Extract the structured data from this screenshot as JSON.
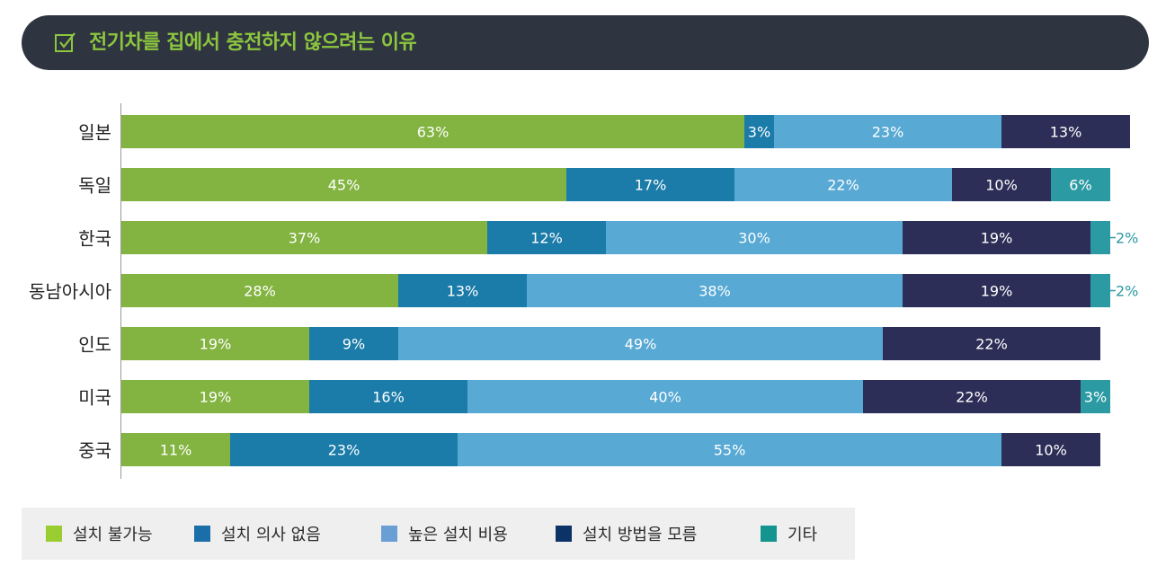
{
  "header": {
    "title": "전기차를 집에서 충전하지 않으려는 이유",
    "icon": "checkbox-icon"
  },
  "colors": {
    "header_bg": "#2f3540",
    "title_text": "#8cc63e",
    "series": [
      "#83b441",
      "#1b7ba9",
      "#58a9d4",
      "#2d2e57",
      "#2b9aa3"
    ],
    "legend_swatches": [
      "#9acd32",
      "#1b6fa8",
      "#6a9fd6",
      "#0c3366",
      "#14948f"
    ]
  },
  "legend": {
    "items": [
      {
        "label": "설치 불가능"
      },
      {
        "label": "설치 의사 없음"
      },
      {
        "label": "높은 설치 비용"
      },
      {
        "label": "설치 방법을 모름"
      },
      {
        "label": "기타"
      }
    ]
  },
  "chart_data": {
    "type": "bar",
    "orientation": "horizontal",
    "stacked": true,
    "unit": "%",
    "categories": [
      "일본",
      "독일",
      "한국",
      "동남아시아",
      "인도",
      "미국",
      "중국"
    ],
    "series": [
      {
        "name": "설치 불가능",
        "values": [
          63,
          45,
          37,
          28,
          19,
          19,
          11
        ]
      },
      {
        "name": "설치 의사 없음",
        "values": [
          3,
          17,
          12,
          13,
          9,
          16,
          23
        ]
      },
      {
        "name": "높은 설치 비용",
        "values": [
          23,
          22,
          30,
          38,
          49,
          40,
          55
        ]
      },
      {
        "name": "설치 방법을 모름",
        "values": [
          13,
          10,
          19,
          19,
          22,
          22,
          10
        ]
      },
      {
        "name": "기타",
        "values": [
          0,
          6,
          2,
          2,
          0,
          3,
          0
        ]
      }
    ],
    "xlim": [
      0,
      101
    ],
    "legend_position": "bottom"
  }
}
